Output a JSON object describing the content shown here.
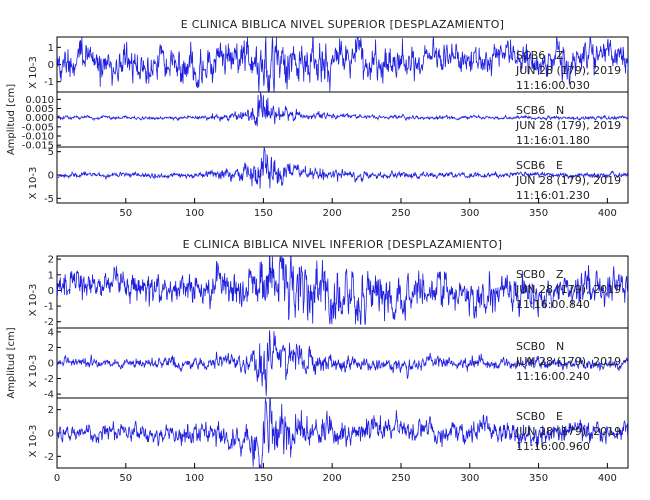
{
  "chart_data": [
    {
      "type": "line",
      "title": "E CLINICA BIBLICA NIVEL SUPERIOR [DESPLAZAMIENTO]",
      "ylabel": "Amplitud [cm]",
      "xlim": [
        0,
        415
      ],
      "xticks": [
        50,
        100,
        150,
        200,
        250,
        300,
        350,
        400
      ],
      "line_color": "#1f1fe0",
      "grid": false,
      "channels": [
        {
          "station": "SCB6",
          "component": "Z",
          "date": "JUN 28 (179), 2019",
          "time": "11:16:00.030",
          "scale": "X 10-3",
          "ylim": [
            -1.6,
            1.6
          ],
          "yticks": [
            "-1",
            "0",
            "1"
          ],
          "envelope": {
            "x": [
              0,
              100,
              125,
              140,
              150,
              160,
              180,
              230,
              300,
              415
            ],
            "amplitude": [
              0.9,
              0.9,
              1.0,
              1.2,
              1.5,
              1.3,
              1.1,
              0.9,
              0.8,
              0.9
            ]
          }
        },
        {
          "station": "SCB6",
          "component": "N",
          "date": "JUN 28 (179), 2019",
          "time": "11:16:01.180",
          "scale": "",
          "ylim": [
            -0.016,
            0.014
          ],
          "yticks": [
            "0.010",
            "0.005",
            "0.000",
            "-0.005",
            "-0.010",
            "-0.015"
          ],
          "envelope": {
            "x": [
              0,
              100,
              125,
              140,
              150,
              160,
              180,
              230,
              300,
              415
            ],
            "amplitude": [
              0.0008,
              0.0008,
              0.002,
              0.003,
              0.011,
              0.004,
              0.002,
              0.001,
              0.0008,
              0.0008
            ]
          }
        },
        {
          "station": "SCB6",
          "component": "E",
          "date": "JUN 28 (179), 2019",
          "time": "11:16:01.230",
          "scale": "X 10-3",
          "ylim": [
            -6,
            6
          ],
          "yticks": [
            "5",
            "0",
            "-5"
          ],
          "envelope": {
            "x": [
              0,
              100,
              125,
              140,
              150,
              160,
              180,
              230,
              300,
              415
            ],
            "amplitude": [
              0.5,
              0.5,
              1.5,
              2.5,
              5.0,
              2.5,
              1.5,
              0.7,
              0.5,
              0.5
            ]
          }
        }
      ]
    },
    {
      "type": "line",
      "title": "E CLINICA BIBLICA NIVEL INFERIOR [DESPLAZAMIENTO]",
      "ylabel": "Amplitud [cm]",
      "xlim": [
        0,
        415
      ],
      "xticks": [
        0,
        50,
        100,
        150,
        200,
        250,
        300,
        350,
        400
      ],
      "line_color": "#1f1fe0",
      "grid": false,
      "channels": [
        {
          "station": "SCB0",
          "component": "Z",
          "date": "JUN 28 (179), 2019",
          "time": "11:16:00.840",
          "scale": "X 10-3",
          "ylim": [
            -2.4,
            2.2
          ],
          "yticks": [
            "2",
            "1",
            "0",
            "-1",
            "-2"
          ],
          "envelope": {
            "x": [
              0,
              100,
              140,
              150,
              170,
              200,
              250,
              300,
              415
            ],
            "amplitude": [
              0.8,
              0.9,
              1.2,
              1.8,
              2.0,
              1.6,
              1.2,
              1.0,
              1.0
            ]
          }
        },
        {
          "station": "SCB0",
          "component": "N",
          "date": "JUN 28 (179), 2019",
          "time": "11:16:00.240",
          "scale": "X 10-3",
          "ylim": [
            -4.5,
            4.5
          ],
          "yticks": [
            "4",
            "2",
            "0",
            "-2",
            "-4"
          ],
          "envelope": {
            "x": [
              0,
              100,
              140,
              150,
              160,
              180,
              230,
              300,
              415
            ],
            "amplitude": [
              0.5,
              0.6,
              1.0,
              4.0,
              2.5,
              1.5,
              0.8,
              0.7,
              0.6
            ]
          }
        },
        {
          "station": "SCB0",
          "component": "E",
          "date": "JUN 28 (179), 2019",
          "time": "11:16:00.960",
          "scale": "X 10-3",
          "ylim": [
            -3,
            3
          ],
          "yticks": [
            "2",
            "0",
            "-2"
          ],
          "envelope": {
            "x": [
              0,
              100,
              140,
              150,
              160,
              180,
              230,
              300,
              415
            ],
            "amplitude": [
              0.6,
              0.7,
              1.2,
              2.8,
              1.8,
              1.2,
              0.9,
              0.8,
              0.7
            ]
          }
        }
      ]
    }
  ]
}
